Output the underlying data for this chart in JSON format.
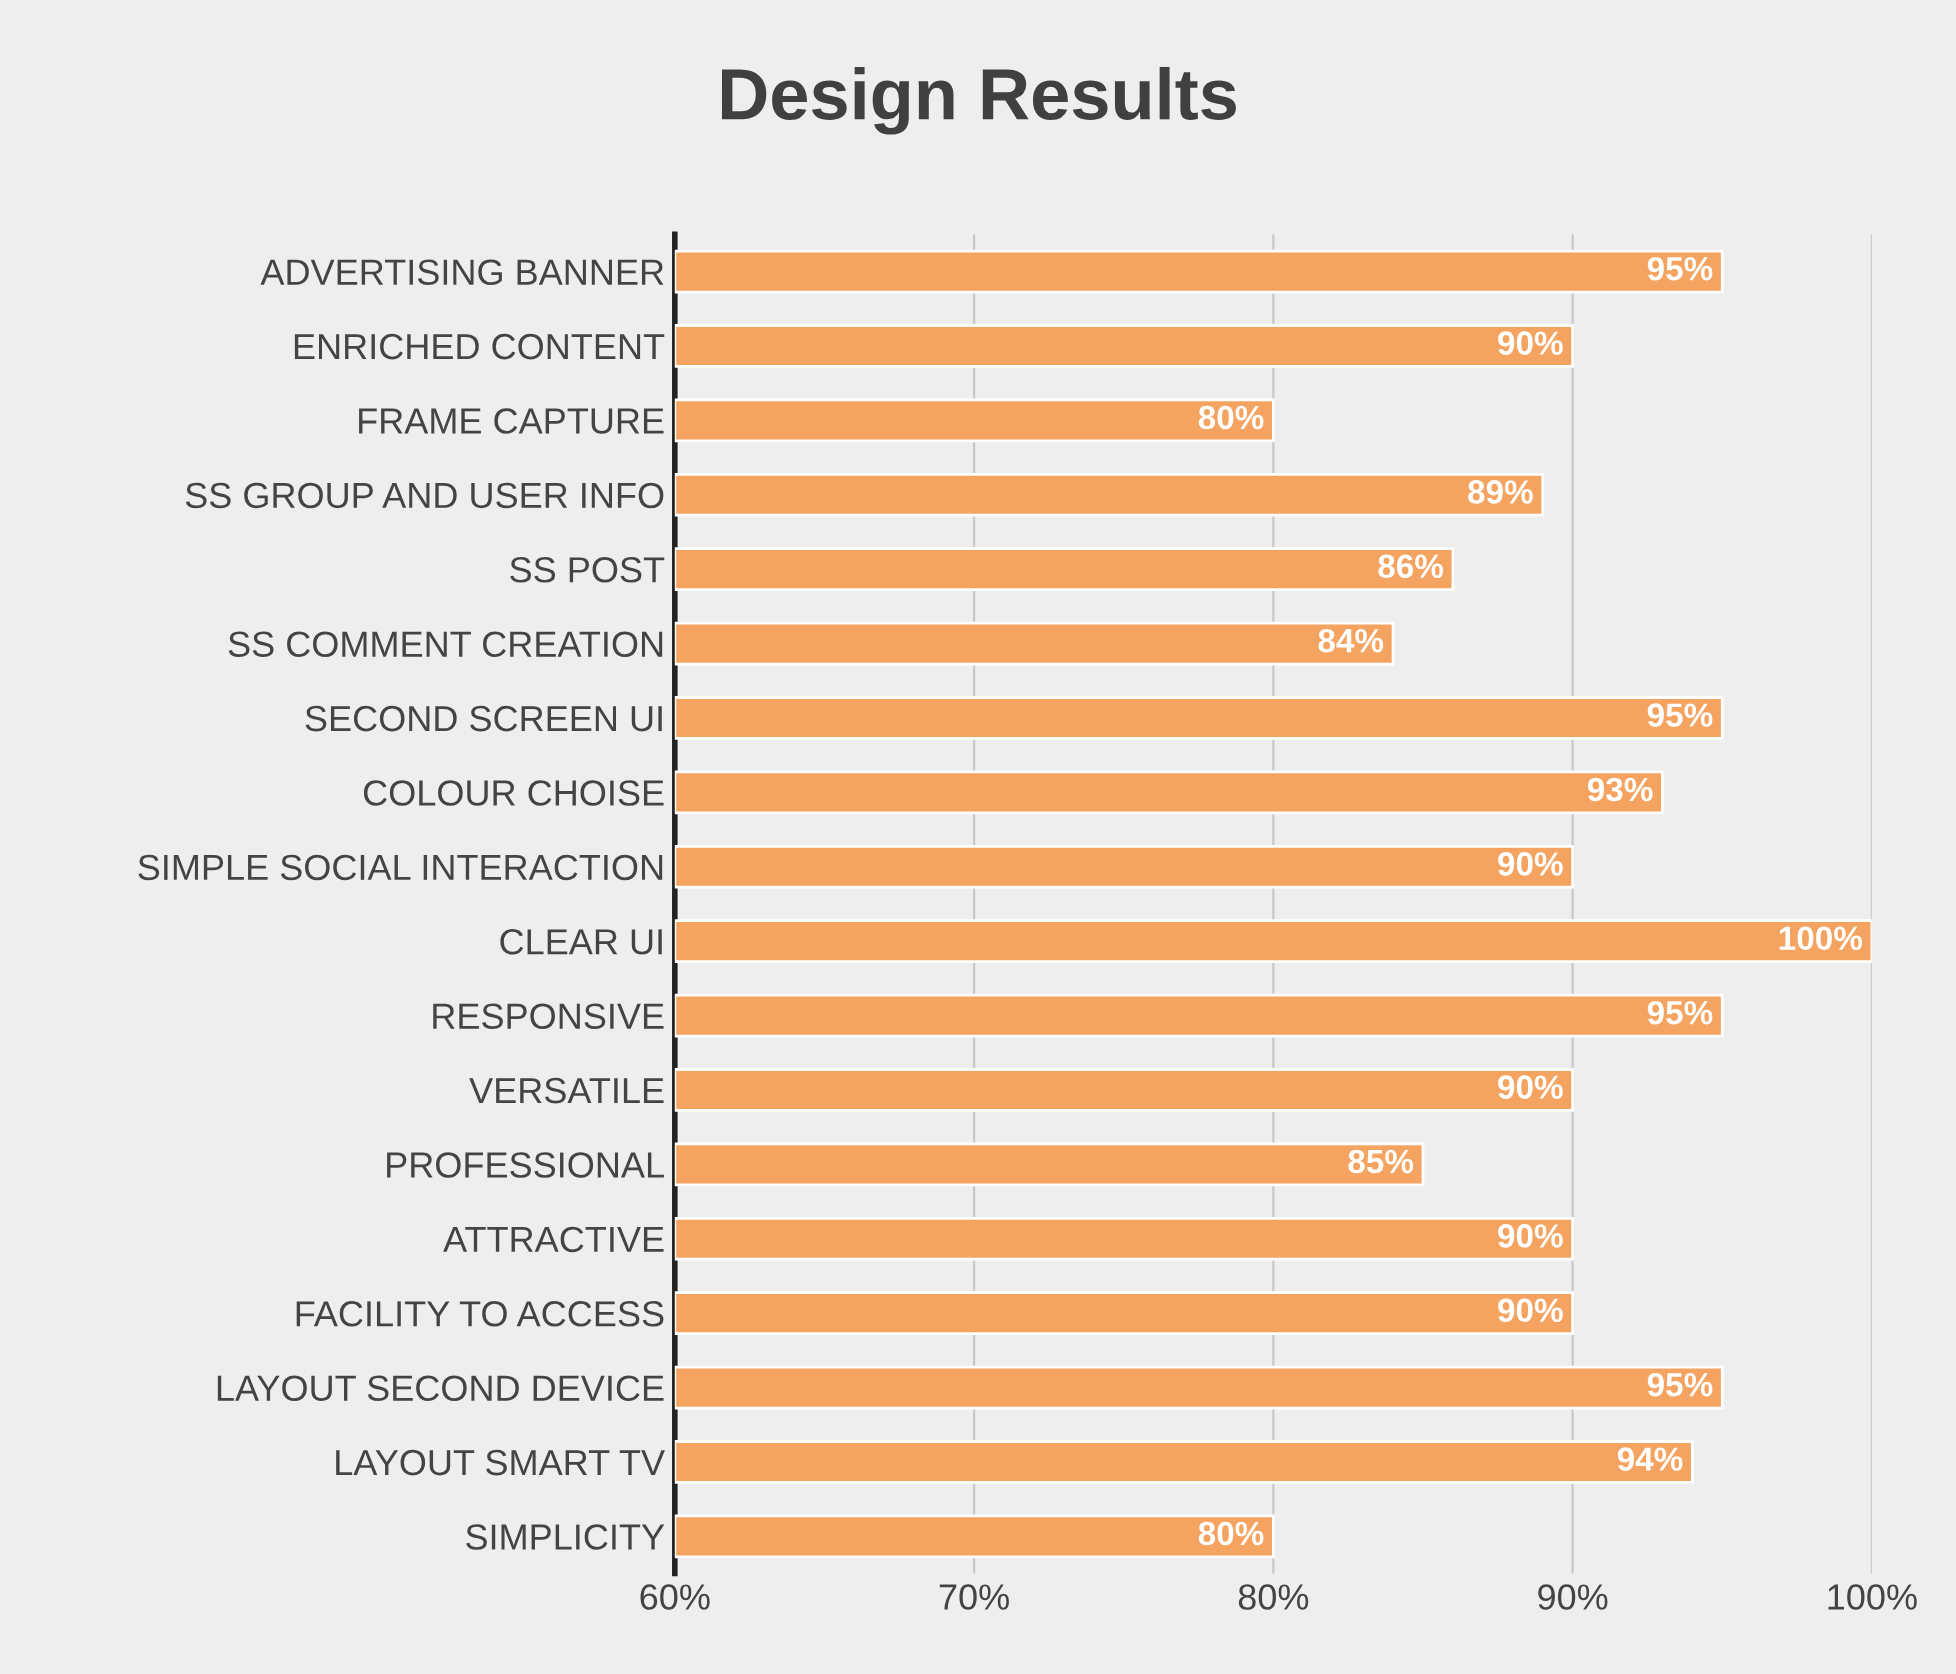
{
  "chart_data": {
    "type": "bar",
    "orientation": "horizontal",
    "title": "Design Results",
    "categories": [
      "ADVERTISING BANNER",
      "ENRICHED CONTENT",
      "FRAME CAPTURE",
      "SS GROUP AND USER INFO",
      "SS POST",
      "SS COMMENT CREATION",
      "SECOND SCREEN UI",
      "COLOUR CHOISE",
      "SIMPLE SOCIAL INTERACTION",
      "CLEAR UI",
      "RESPONSIVE",
      "VERSATILE",
      "PROFESSIONAL",
      "ATTRACTIVE",
      "FACILITY TO ACCESS",
      "LAYOUT SECOND DEVICE",
      "LAYOUT SMART TV",
      "SIMPLICITY"
    ],
    "values": [
      95,
      90,
      80,
      89,
      86,
      84,
      95,
      93,
      90,
      100,
      95,
      90,
      85,
      90,
      90,
      95,
      94,
      80
    ],
    "value_labels": [
      "95%",
      "90%",
      "80%",
      "89%",
      "86%",
      "84%",
      "95%",
      "93%",
      "90%",
      "100%",
      "95%",
      "90%",
      "85%",
      "90%",
      "90%",
      "95%",
      "94%",
      "80%"
    ],
    "color": "#f4a460",
    "xlim": [
      60,
      100
    ],
    "xticks": [
      {
        "value": 60,
        "label": "60%"
      },
      {
        "value": 70,
        "label": "70%"
      },
      {
        "value": 80,
        "label": "80%"
      },
      {
        "value": 90,
        "label": "90%"
      },
      {
        "value": 100,
        "label": "100%"
      }
    ],
    "grid": "x"
  }
}
